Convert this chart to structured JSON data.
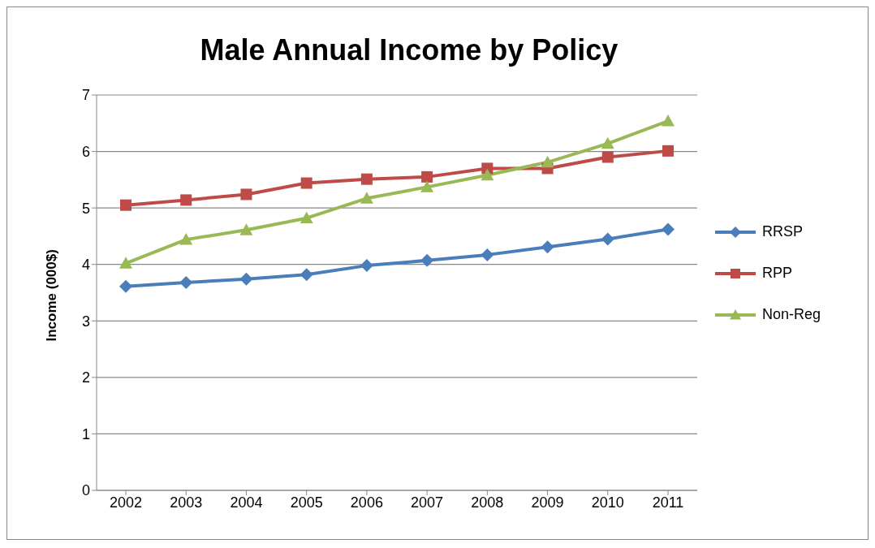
{
  "chart_data": {
    "type": "line",
    "title": "Male Annual Income by Policy",
    "ylabel": "Income (000$)",
    "categories": [
      "2002",
      "2003",
      "2004",
      "2005",
      "2006",
      "2007",
      "2008",
      "2009",
      "2010",
      "2011"
    ],
    "series": [
      {
        "name": "RRSP",
        "color": "#4a7ebb",
        "marker": "diamond",
        "values": [
          3.61,
          3.68,
          3.74,
          3.82,
          3.98,
          4.07,
          4.17,
          4.31,
          4.45,
          4.62
        ]
      },
      {
        "name": "RPP",
        "color": "#be4b48",
        "marker": "square",
        "values": [
          5.05,
          5.14,
          5.24,
          5.44,
          5.51,
          5.55,
          5.7,
          5.7,
          5.9,
          6.01
        ]
      },
      {
        "name": "Non-Reg",
        "color": "#98b954",
        "marker": "triangle",
        "values": [
          4.02,
          4.44,
          4.61,
          4.82,
          5.17,
          5.37,
          5.58,
          5.81,
          6.14,
          6.54
        ]
      }
    ],
    "ylim": [
      0,
      7
    ],
    "yticks": [
      0,
      1,
      2,
      3,
      4,
      5,
      6,
      7
    ],
    "grid": "y",
    "legend": "right",
    "line_style": "solid"
  }
}
